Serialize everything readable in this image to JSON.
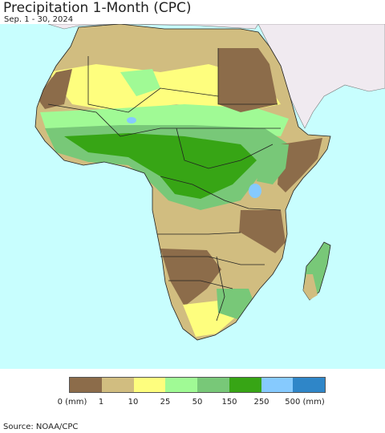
{
  "header": {
    "title": "Precipitation 1-Month (CPC)",
    "subtitle": "Sep. 1 - 30, 2024"
  },
  "legend": {
    "labels": [
      "0 (mm)",
      "1",
      "10",
      "25",
      "50",
      "150",
      "250",
      "500 (mm)"
    ],
    "colors": [
      "#8c6c4a",
      "#d1bd80",
      "#fefe7e",
      "#a0fa95",
      "#78c878",
      "#37a515",
      "#86cafe",
      "#2f86c8"
    ]
  },
  "map_colors": {
    "ocean": "#c8fefe",
    "land_other": "#f0eaf0",
    "border": "#222222"
  },
  "footer": {
    "source": "Source: NOAA/CPC"
  }
}
